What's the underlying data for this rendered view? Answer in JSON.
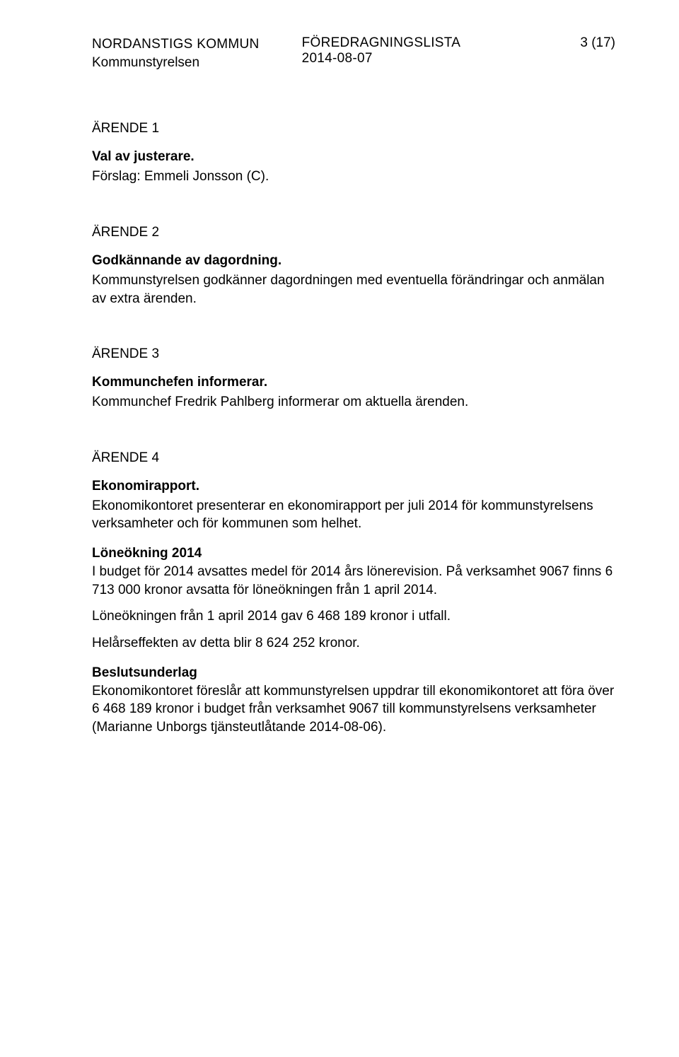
{
  "header": {
    "org": "NORDANSTIGS KOMMUN",
    "unit": "Kommunstyrelsen",
    "doc_type": "FÖREDRAGNINGSLISTA",
    "date": "2014-08-07",
    "page_ref": "3 (17)"
  },
  "sections": [
    {
      "label": "ÄRENDE 1",
      "title": "Val av justerare.",
      "paras": [
        "Förslag: Emmeli Jonsson (C)."
      ]
    },
    {
      "label": "ÄRENDE  2",
      "title": "Godkännande av dagordning.",
      "paras": [
        "Kommunstyrelsen godkänner dagordningen med eventuella förändringar och anmälan av extra ärenden."
      ]
    },
    {
      "label": "ÄRENDE  3",
      "title": "Kommunchefen informerar.",
      "paras": [
        "Kommunchef Fredrik Pahlberg informerar om aktuella ärenden."
      ]
    },
    {
      "label": "ÄRENDE  4",
      "title": "Ekonomirapport.",
      "paras": [
        "Ekonomikontoret presenterar en ekonomirapport per juli 2014 för kommunstyrelsens verksamheter och för kommunen som helhet."
      ],
      "sub1_title": "Löneökning 2014",
      "sub1_paras": [
        "I budget för 2014 avsattes medel för 2014 års lönerevision. På verksamhet 9067 finns 6 713 000 kronor avsatta för löneökningen från 1 april 2014.",
        "Löneökningen från 1 april 2014 gav 6 468 189 kronor i utfall.",
        "Helårseffekten av detta blir 8 624 252 kronor."
      ],
      "sub2_title": "Beslutsunderlag",
      "sub2_paras": [
        "Ekonomikontoret föreslår att kommunstyrelsen uppdrar till ekonomikontoret att föra över 6 468 189 kronor i budget från verksamhet 9067 till kommunstyrelsens verksamheter (Marianne Unborgs tjänsteutlåtande 2014-08-06)."
      ]
    }
  ]
}
